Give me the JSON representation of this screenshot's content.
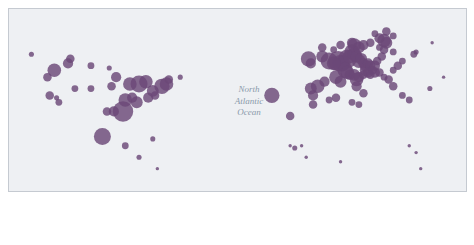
{
  "chart_data": {
    "type": "scatter",
    "xlim": [
      -140,
      60
    ],
    "ylim": [
      -5,
      75
    ],
    "tick_labels": false,
    "annotations": [
      {
        "text": "North\nAtlantic\nOcean",
        "x": -35,
        "y": 35
      }
    ],
    "series": [
      {
        "color": "#6b4878",
        "x": [
          -120,
          -114,
          -113,
          -104,
          -96,
          -123,
          -122,
          -118,
          -119,
          -111,
          -104,
          -95,
          -93,
          -87,
          -83,
          -80,
          -79,
          -77,
          -76,
          -73,
          -71,
          -70,
          -84,
          -86,
          -89,
          -90,
          -94,
          -97,
          -99,
          -89,
          -77,
          -65,
          -83,
          -75,
          -130
        ],
        "y": [
          48,
          51,
          53,
          50,
          49,
          45,
          37,
          34,
          36,
          40,
          40,
          41,
          45,
          42,
          42,
          43,
          36,
          39,
          37,
          41,
          42,
          44,
          34,
          36,
          35,
          30,
          30,
          30,
          19,
          15,
          18,
          45,
          10,
          5,
          55
        ],
        "size": [
          8,
          6,
          5,
          4,
          3,
          5,
          5,
          4,
          3,
          4,
          4,
          5,
          6,
          8,
          10,
          8,
          6,
          7,
          5,
          9,
          8,
          5,
          7,
          6,
          8,
          12,
          6,
          5,
          10,
          4,
          3,
          3,
          3,
          2,
          3
        ]
      },
      {
        "color": "#6b4878",
        "x": [
          -9,
          -8,
          -3,
          0,
          2,
          4,
          5,
          6,
          8,
          9,
          10,
          11,
          12,
          13,
          14,
          15,
          16,
          17,
          18,
          19,
          20,
          21,
          23,
          25,
          24,
          22,
          18,
          15,
          13,
          11,
          10,
          5,
          2,
          -3,
          3,
          5,
          7,
          8,
          9,
          11,
          12,
          13,
          15,
          16,
          17,
          18,
          20,
          22,
          24,
          26,
          28,
          30,
          32,
          28,
          24,
          22,
          20,
          25,
          28,
          -2,
          -5,
          -8,
          -7,
          -25,
          12,
          15,
          28,
          32,
          35,
          -7,
          0,
          10,
          13,
          3,
          -17,
          -15,
          -17,
          -12,
          -10,
          5,
          35,
          38,
          40,
          45,
          38,
          37,
          44,
          50
        ],
        "y": [
          53,
          51,
          54,
          52,
          51,
          52,
          51,
          51,
          53,
          54,
          56,
          55,
          54,
          52,
          53,
          51,
          50,
          51,
          50,
          48,
          50,
          52,
          54,
          60,
          61,
          62,
          60,
          59,
          58,
          59,
          60,
          59,
          57,
          58,
          45,
          43,
          48,
          47,
          46,
          46,
          44,
          45,
          46,
          48,
          47,
          46,
          47,
          47,
          45,
          44,
          48,
          50,
          52,
          56,
          57,
          58,
          64,
          65,
          63,
          43,
          41,
          40,
          37,
          37,
          41,
          38,
          41,
          37,
          35,
          33,
          35,
          34,
          33,
          36,
          28,
          14,
          15,
          15,
          10,
          8,
          15,
          12,
          5,
          60,
          56,
          55,
          40,
          45
        ],
        "size": [
          9,
          6,
          7,
          10,
          8,
          12,
          10,
          9,
          11,
          8,
          9,
          8,
          7,
          8,
          7,
          6,
          7,
          6,
          6,
          5,
          6,
          5,
          5,
          7,
          8,
          6,
          5,
          6,
          7,
          8,
          6,
          5,
          4,
          5,
          8,
          7,
          9,
          8,
          6,
          7,
          8,
          6,
          5,
          7,
          6,
          5,
          6,
          5,
          4,
          5,
          4,
          5,
          4,
          4,
          5,
          4,
          4,
          5,
          4,
          6,
          8,
          7,
          6,
          9,
          6,
          5,
          5,
          4,
          4,
          5,
          4,
          4,
          4,
          5,
          5,
          3,
          2,
          2,
          2,
          2,
          2,
          2,
          2,
          2,
          3,
          4,
          3,
          2
        ]
      }
    ]
  }
}
